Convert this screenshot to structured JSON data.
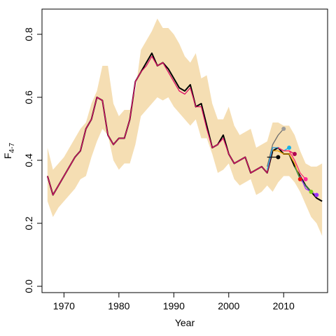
{
  "chart_data": {
    "type": "line",
    "title": "",
    "xlabel": "Year",
    "ylabel_main": "F",
    "ylabel_sub": "4-7",
    "xlim": [
      1966,
      2018
    ],
    "ylim": [
      -0.02,
      0.88
    ],
    "x_ticks": [
      1970,
      1980,
      1990,
      2000,
      2010
    ],
    "y_ticks": [
      0.0,
      0.2,
      0.4,
      0.6,
      0.8
    ],
    "x_tick_labels": [
      "1970",
      "1980",
      "1990",
      "2000",
      "2010"
    ],
    "y_tick_labels": [
      "0.0",
      "0.2",
      "0.4",
      "0.6",
      "0.8"
    ],
    "grid": false,
    "legend": "none",
    "confidence_band": {
      "color": "#f5deb3",
      "x": [
        1967,
        1968,
        1969,
        1970,
        1971,
        1972,
        1973,
        1974,
        1975,
        1976,
        1977,
        1978,
        1979,
        1980,
        1981,
        1982,
        1983,
        1984,
        1985,
        1986,
        1987,
        1988,
        1989,
        1990,
        1991,
        1992,
        1993,
        1994,
        1995,
        1996,
        1997,
        1998,
        1999,
        2000,
        2001,
        2002,
        2003,
        2004,
        2005,
        2006,
        2007,
        2008,
        2009,
        2010,
        2011,
        2012,
        2013,
        2014,
        2015,
        2016,
        2017
      ],
      "upper": [
        0.44,
        0.37,
        0.39,
        0.41,
        0.44,
        0.47,
        0.5,
        0.52,
        0.58,
        0.62,
        0.7,
        0.7,
        0.58,
        0.54,
        0.56,
        0.56,
        0.62,
        0.75,
        0.78,
        0.81,
        0.85,
        0.82,
        0.82,
        0.8,
        0.77,
        0.73,
        0.71,
        0.74,
        0.66,
        0.67,
        0.58,
        0.53,
        0.53,
        0.57,
        0.51,
        0.48,
        0.49,
        0.5,
        0.44,
        0.45,
        0.46,
        0.52,
        0.52,
        0.51,
        0.51,
        0.48,
        0.43,
        0.39,
        0.38,
        0.38,
        0.39
      ],
      "lower": [
        0.27,
        0.22,
        0.25,
        0.27,
        0.29,
        0.31,
        0.34,
        0.35,
        0.41,
        0.46,
        0.5,
        0.48,
        0.4,
        0.37,
        0.39,
        0.39,
        0.45,
        0.54,
        0.56,
        0.58,
        0.6,
        0.59,
        0.6,
        0.57,
        0.55,
        0.53,
        0.51,
        0.53,
        0.47,
        0.47,
        0.42,
        0.36,
        0.37,
        0.39,
        0.34,
        0.32,
        0.33,
        0.34,
        0.29,
        0.3,
        0.32,
        0.3,
        0.33,
        0.35,
        0.35,
        0.33,
        0.3,
        0.26,
        0.22,
        0.2,
        0.16
      ]
    },
    "series": [
      {
        "color": "#000000",
        "x": [
          1967,
          1968,
          1969,
          1970,
          1971,
          1972,
          1973,
          1974,
          1975,
          1976,
          1977,
          1978,
          1979,
          1980,
          1981,
          1982,
          1983,
          1984,
          1985,
          1986,
          1987,
          1988,
          1989,
          1990,
          1991,
          1992,
          1993,
          1994,
          1995,
          1996,
          1997,
          1998,
          1999,
          2000,
          2001,
          2002,
          2003,
          2004,
          2005,
          2006,
          2007,
          2008,
          2009,
          2010,
          2011,
          2012,
          2013,
          2014,
          2015,
          2016,
          2017
        ],
        "values": [
          0.35,
          0.29,
          0.32,
          0.35,
          0.38,
          0.41,
          0.43,
          0.5,
          0.53,
          0.6,
          0.59,
          0.48,
          0.45,
          0.47,
          0.47,
          0.53,
          0.65,
          0.68,
          0.71,
          0.74,
          0.7,
          0.71,
          0.69,
          0.66,
          0.63,
          0.62,
          0.64,
          0.57,
          0.58,
          0.51,
          0.44,
          0.45,
          0.48,
          0.42,
          0.39,
          0.4,
          0.41,
          0.36,
          0.37,
          0.38,
          0.36,
          0.43,
          0.44,
          0.42,
          0.42,
          0.38,
          0.35,
          0.32,
          0.3,
          0.28,
          0.27
        ]
      },
      {
        "color": "#dd1166",
        "x": [
          1967,
          1968,
          1969,
          1970,
          1971,
          1972,
          1973,
          1974,
          1975,
          1976,
          1977,
          1978,
          1979,
          1980,
          1981,
          1982,
          1983,
          1984,
          1985,
          1986,
          1987,
          1988,
          1989,
          1990,
          1991,
          1992,
          1993,
          1994,
          1995,
          1996,
          1997,
          1998,
          1999,
          2000,
          2001,
          2002,
          2003,
          2004,
          2005,
          2006,
          2007,
          2008,
          2009,
          2010,
          2011,
          2012
        ],
        "values": [
          0.35,
          0.29,
          0.32,
          0.35,
          0.38,
          0.41,
          0.43,
          0.5,
          0.53,
          0.6,
          0.59,
          0.48,
          0.45,
          0.47,
          0.47,
          0.53,
          0.65,
          0.68,
          0.7,
          0.73,
          0.7,
          0.71,
          0.68,
          0.65,
          0.62,
          0.61,
          0.63,
          0.57,
          0.57,
          0.5,
          0.44,
          0.45,
          0.47,
          0.42,
          0.39,
          0.4,
          0.41,
          0.36,
          0.37,
          0.38,
          0.36,
          0.44,
          0.44,
          0.43,
          0.43,
          0.42
        ]
      },
      {
        "color": "#6e6e6e",
        "x": [
          2007,
          2008,
          2009,
          2010
        ],
        "values": [
          0.38,
          0.45,
          0.48,
          0.5
        ]
      },
      {
        "color": "#1ab0e8",
        "x": [
          2007,
          2008,
          2009,
          2010,
          2011
        ],
        "values": [
          0.37,
          0.44,
          0.44,
          0.43,
          0.44
        ]
      },
      {
        "color": "#e6a000",
        "x": [
          2008,
          2009,
          2010,
          2011,
          2012,
          2013
        ],
        "values": [
          0.43,
          0.43,
          0.42,
          0.42,
          0.39,
          0.34
        ]
      },
      {
        "color": "#ff2a6d",
        "x": [
          2009,
          2010,
          2011,
          2012,
          2013,
          2014
        ],
        "values": [
          0.44,
          0.43,
          0.43,
          0.4,
          0.36,
          0.34
        ]
      },
      {
        "color": "#111111",
        "x": [
          2007,
          2008,
          2009
        ],
        "values": [
          0.41,
          0.41,
          0.41
        ]
      },
      {
        "color": "#2e8b57",
        "x": [
          2012,
          2013,
          2014,
          2015
        ],
        "values": [
          0.38,
          0.34,
          0.32,
          0.3
        ]
      },
      {
        "color": "#9b30ff",
        "x": [
          2013,
          2014,
          2015,
          2016
        ],
        "values": [
          0.35,
          0.31,
          0.3,
          0.29
        ]
      }
    ],
    "endpoints": [
      {
        "x": 2009,
        "y": 0.41,
        "color": "#000000"
      },
      {
        "x": 2010,
        "y": 0.5,
        "color": "#9a9a9a"
      },
      {
        "x": 2011,
        "y": 0.44,
        "color": "#1ab0e8"
      },
      {
        "x": 2012,
        "y": 0.42,
        "color": "#b00050"
      },
      {
        "x": 2013,
        "y": 0.34,
        "color": "#ee1111"
      },
      {
        "x": 2014,
        "y": 0.34,
        "color": "#ff2a9d"
      },
      {
        "x": 2015,
        "y": 0.3,
        "color": "#7ccd1a"
      },
      {
        "x": 2016,
        "y": 0.29,
        "color": "#9b30ff"
      }
    ]
  }
}
